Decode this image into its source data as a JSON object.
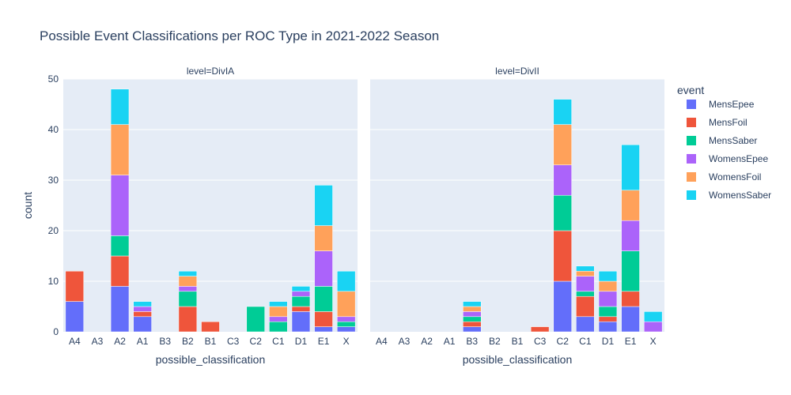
{
  "chart_data": {
    "type": "bar",
    "barmode": "stack",
    "title": "Possible Event Classifications per ROC Type in 2021-2022 Season",
    "xlabel": "possible_classification",
    "ylabel": "count",
    "ylim": [
      0,
      50
    ],
    "yticks": [
      0,
      10,
      20,
      30,
      40,
      50
    ],
    "categories": [
      "A4",
      "A3",
      "A2",
      "A1",
      "B3",
      "B2",
      "B1",
      "C3",
      "C2",
      "C1",
      "D1",
      "E1",
      "X"
    ],
    "legend": {
      "title": "event",
      "position": "right"
    },
    "colors": {
      "MensEpee": "#636efa",
      "MensFoil": "#ef553b",
      "MensSaber": "#00cc96",
      "WomensEpee": "#ab63fa",
      "WomensFoil": "#ffa15a",
      "WomensSaber": "#19d3f3"
    },
    "series_order": [
      "MensEpee",
      "MensFoil",
      "MensSaber",
      "WomensEpee",
      "WomensFoil",
      "WomensSaber"
    ],
    "panels": [
      {
        "label": "level=DivIA",
        "series": [
          {
            "name": "MensEpee",
            "values": [
              6,
              0,
              9,
              3,
              0,
              0,
              0,
              0,
              0,
              0,
              4,
              1,
              1
            ]
          },
          {
            "name": "MensFoil",
            "values": [
              6,
              0,
              6,
              1,
              0,
              5,
              2,
              0,
              0,
              0,
              1,
              3,
              0
            ]
          },
          {
            "name": "MensSaber",
            "values": [
              0,
              0,
              4,
              0,
              0,
              3,
              0,
              0,
              5,
              2,
              2,
              5,
              1
            ]
          },
          {
            "name": "WomensEpee",
            "values": [
              0,
              0,
              12,
              1,
              0,
              1,
              0,
              0,
              0,
              1,
              1,
              7,
              1
            ]
          },
          {
            "name": "WomensFoil",
            "values": [
              0,
              0,
              10,
              0,
              0,
              2,
              0,
              0,
              0,
              2,
              0,
              5,
              5
            ]
          },
          {
            "name": "WomensSaber",
            "values": [
              0,
              0,
              7,
              1,
              0,
              1,
              0,
              0,
              0,
              1,
              1,
              8,
              4
            ]
          }
        ]
      },
      {
        "label": "level=DivII",
        "series": [
          {
            "name": "MensEpee",
            "values": [
              0,
              0,
              0,
              0,
              1,
              0,
              0,
              0,
              10,
              3,
              2,
              5,
              0
            ]
          },
          {
            "name": "MensFoil",
            "values": [
              0,
              0,
              0,
              0,
              1,
              0,
              0,
              1,
              10,
              4,
              1,
              3,
              0
            ]
          },
          {
            "name": "MensSaber",
            "values": [
              0,
              0,
              0,
              0,
              1,
              0,
              0,
              0,
              7,
              1,
              2,
              8,
              0
            ]
          },
          {
            "name": "WomensEpee",
            "values": [
              0,
              0,
              0,
              0,
              1,
              0,
              0,
              0,
              6,
              3,
              3,
              6,
              2
            ]
          },
          {
            "name": "WomensFoil",
            "values": [
              0,
              0,
              0,
              0,
              1,
              0,
              0,
              0,
              8,
              1,
              2,
              6,
              0
            ]
          },
          {
            "name": "WomensSaber",
            "values": [
              0,
              0,
              0,
              0,
              1,
              0,
              0,
              0,
              5,
              1,
              2,
              9,
              2
            ]
          }
        ]
      }
    ]
  }
}
